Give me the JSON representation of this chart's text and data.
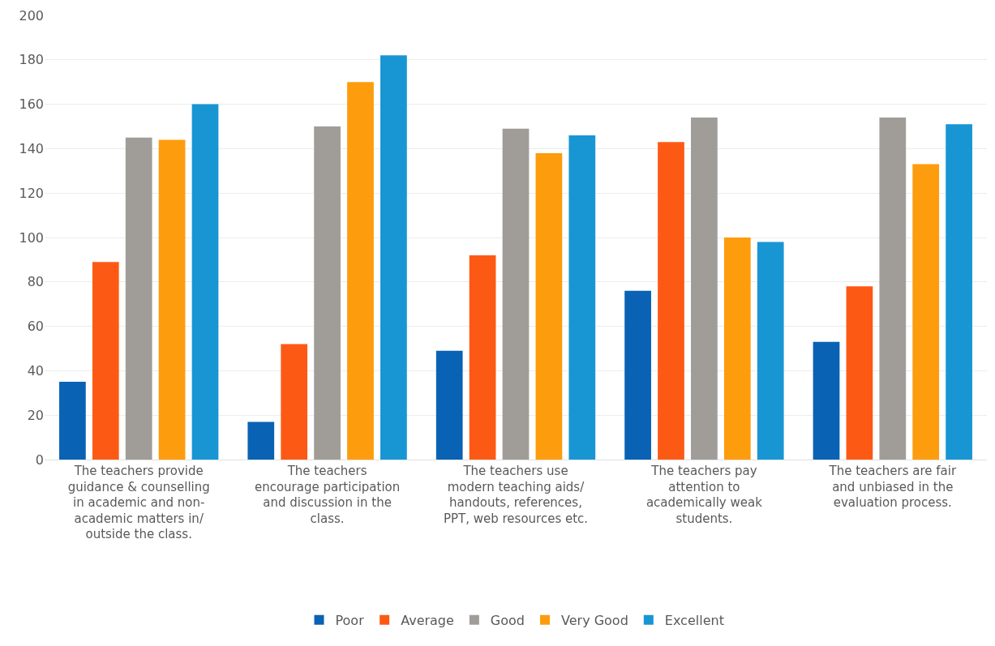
{
  "chart_data": {
    "type": "bar",
    "categories": [
      "The teachers provide\nguidance & counselling\nin academic and non-\nacademic matters in/\noutside the class.",
      "The teachers\nencourage participation\nand discussion in the\nclass.",
      "The teachers use\nmodern teaching aids/\nhandouts, references,\nPPT, web resources etc.",
      "The teachers pay\nattention to\nacademically weak\nstudents.",
      "The teachers are fair\nand unbiased in the\nevaluation process."
    ],
    "series": [
      {
        "name": "Poor",
        "color": "#0a62b4",
        "values": [
          35,
          17,
          49,
          76,
          53
        ]
      },
      {
        "name": "Average",
        "color": "#fc5a14",
        "values": [
          89,
          52,
          92,
          143,
          78
        ]
      },
      {
        "name": "Good",
        "color": "#a09c98",
        "values": [
          145,
          150,
          149,
          154,
          154
        ]
      },
      {
        "name": "Very Good",
        "color": "#fd9c0c",
        "values": [
          144,
          170,
          138,
          100,
          133
        ]
      },
      {
        "name": "Excellent",
        "color": "#1896d4",
        "values": [
          160,
          182,
          146,
          98,
          151
        ]
      }
    ],
    "ylim": [
      0,
      200
    ],
    "yticks": [
      0,
      20,
      40,
      60,
      80,
      100,
      120,
      140,
      160,
      180,
      200
    ],
    "grid": "y",
    "legend": "bottom"
  }
}
